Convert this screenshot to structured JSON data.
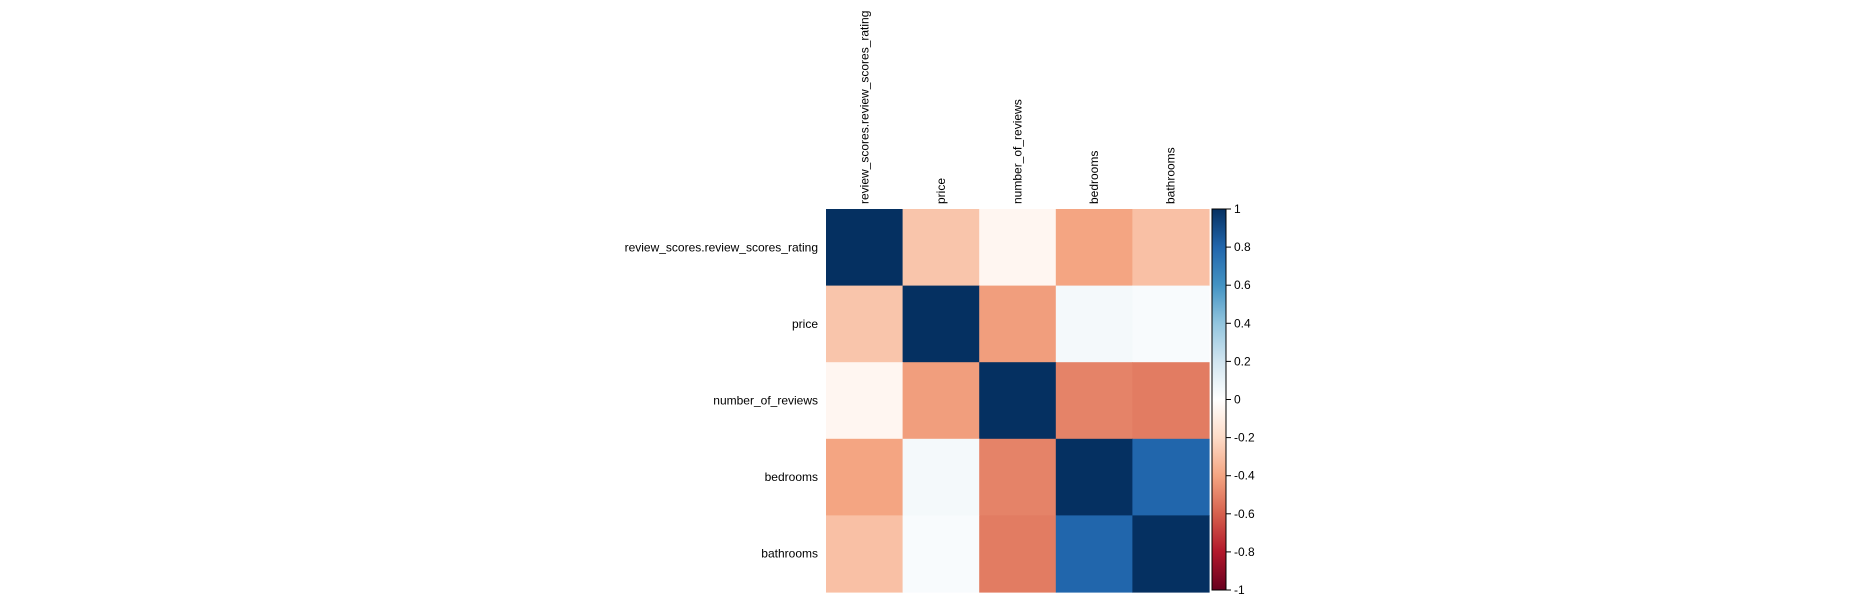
{
  "chart_data": {
    "type": "heatmap",
    "title": "",
    "row_labels": [
      "review_scores.review_scores_rating",
      "price",
      "number_of_reviews",
      "bedrooms",
      "bathrooms"
    ],
    "column_labels": [
      "review_scores.review_scores_rating",
      "price",
      "number_of_reviews",
      "bedrooms",
      "bathrooms"
    ],
    "values": [
      [
        1.0,
        -0.28,
        -0.05,
        -0.4,
        -0.3
      ],
      [
        -0.28,
        1.0,
        -0.42,
        0.05,
        0.03
      ],
      [
        -0.05,
        -0.42,
        1.0,
        -0.5,
        -0.52
      ],
      [
        -0.4,
        0.05,
        -0.5,
        1.0,
        0.8
      ],
      [
        -0.3,
        0.03,
        -0.52,
        0.8,
        1.0
      ]
    ],
    "colorbar": {
      "range": [
        -1,
        1
      ],
      "ticks": [
        1,
        0.8,
        0.6,
        0.4,
        0.2,
        0,
        -0.2,
        -0.4,
        -0.6,
        -0.8,
        -1
      ],
      "tick_labels": [
        "1",
        "0.8",
        "0.6",
        "0.4",
        "0.2",
        "0",
        "-0.2",
        "-0.4",
        "-0.6",
        "-0.8",
        "-1"
      ],
      "colors_low_to_high": [
        "#67001F",
        "#B2182B",
        "#D6604D",
        "#F4A582",
        "#FDDBC7",
        "#FFFFFF",
        "#D1E5F0",
        "#92C5DE",
        "#4393C3",
        "#2166AC",
        "#053061"
      ]
    }
  }
}
